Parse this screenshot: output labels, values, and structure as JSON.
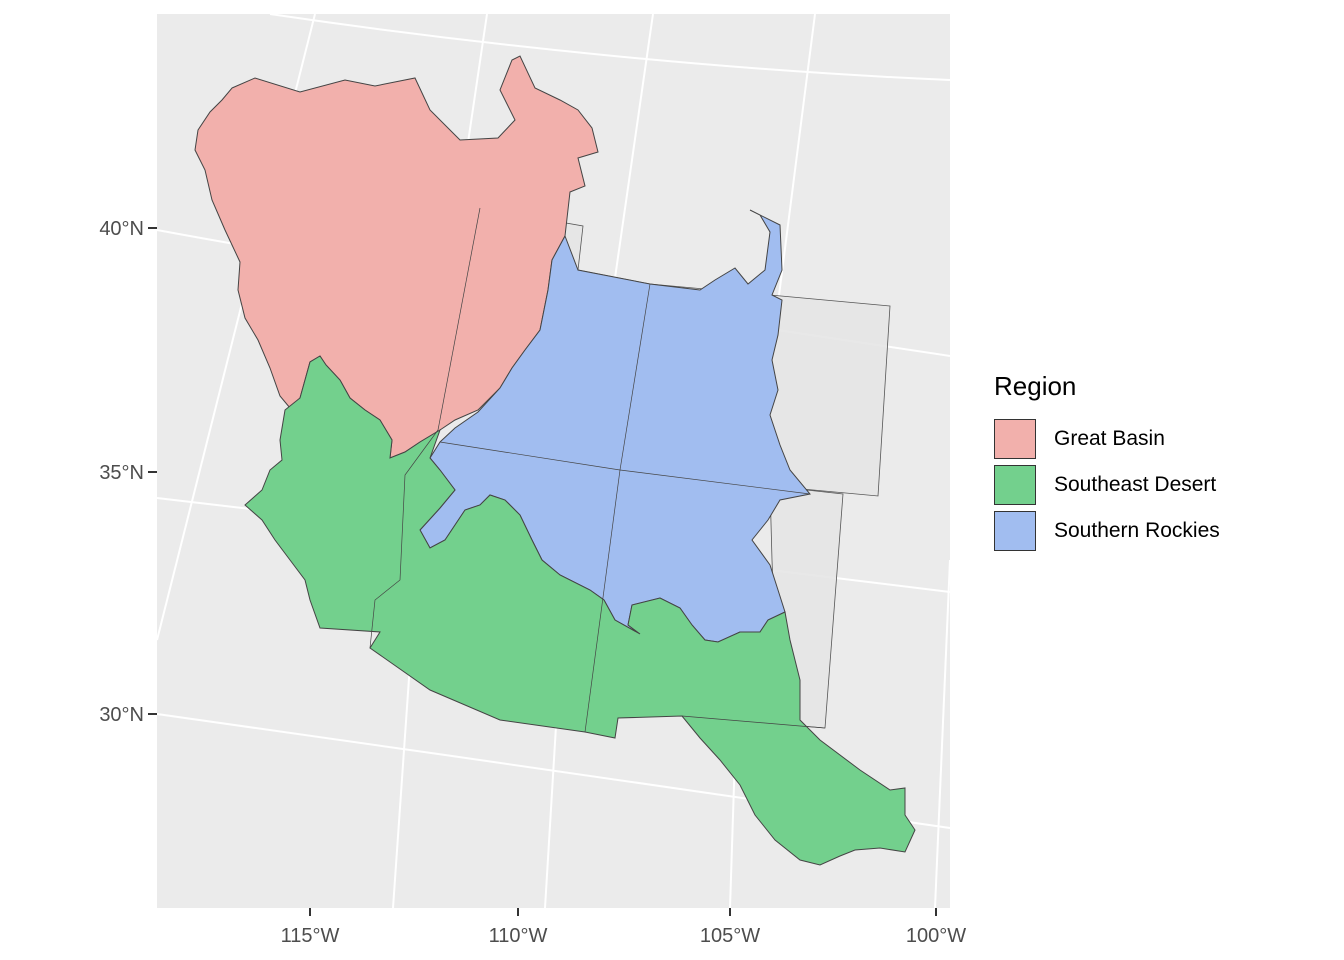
{
  "map": {
    "background_color": "#EBEBEB",
    "grid_color": "#FFFFFF",
    "x_ticks": [
      "115°W",
      "110°W",
      "105°W",
      "100°W"
    ],
    "y_ticks": [
      "40°N",
      "35°N",
      "30°N"
    ]
  },
  "legend": {
    "title": "Region",
    "items": [
      {
        "label": "Great Basin",
        "color": "#F2B0AC"
      },
      {
        "label": "Southeast Desert",
        "color": "#73D08D"
      },
      {
        "label": "Southern Rockies",
        "color": "#A1BDF0"
      }
    ]
  }
}
